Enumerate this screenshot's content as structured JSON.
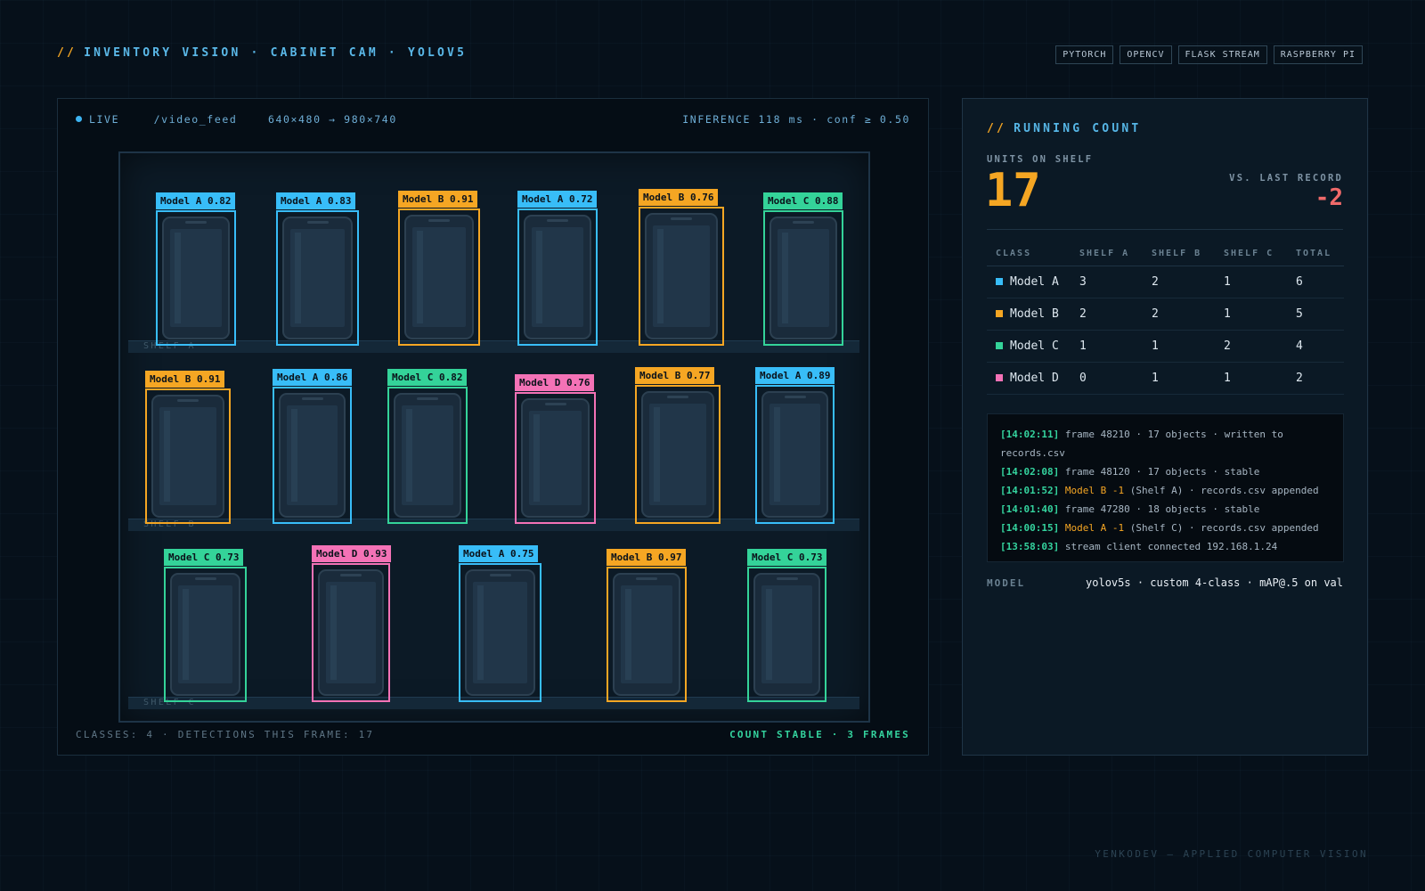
{
  "header": {
    "slashes": "//",
    "title": "INVENTORY VISION · CABINET CAM · YOLOV5",
    "tags": [
      "PYTORCH",
      "OPENCV",
      "FLASK STREAM",
      "RASPBERRY PI"
    ]
  },
  "feed": {
    "live_label": "LIVE",
    "route": "/video_feed",
    "resolution": "640×480 → 980×740",
    "inference": "INFERENCE 118 ms · conf ≥ 0.50",
    "bottom_left": "CLASSES: 4 · DETECTIONS THIS FRAME: 17",
    "bottom_right": "COUNT STABLE · 3 FRAMES",
    "shelves": [
      "SHELF A",
      "SHELF B",
      "SHELF C"
    ],
    "detections": [
      {
        "label": "Model A 0.82",
        "cls": "A"
      },
      {
        "label": "Model A 0.83",
        "cls": "A"
      },
      {
        "label": "Model B 0.91",
        "cls": "B"
      },
      {
        "label": "Model A 0.72",
        "cls": "A"
      },
      {
        "label": "Model B 0.76",
        "cls": "B"
      },
      {
        "label": "Model C 0.88",
        "cls": "C"
      },
      {
        "label": "Model B 0.91",
        "cls": "B"
      },
      {
        "label": "Model A 0.86",
        "cls": "A"
      },
      {
        "label": "Model C 0.82",
        "cls": "C"
      },
      {
        "label": "Model D 0.76",
        "cls": "D"
      },
      {
        "label": "Model B 0.77",
        "cls": "B"
      },
      {
        "label": "Model A 0.89",
        "cls": "A"
      },
      {
        "label": "Model C 0.73",
        "cls": "C"
      },
      {
        "label": "Model D 0.93",
        "cls": "D"
      },
      {
        "label": "Model A 0.75",
        "cls": "A"
      },
      {
        "label": "Model B 0.97",
        "cls": "B"
      },
      {
        "label": "Model C 0.73",
        "cls": "C"
      }
    ]
  },
  "colors": {
    "A": "#38bdf8",
    "B": "#f5a623",
    "C": "#34d399",
    "D": "#f472b6",
    "accent": "#f5a623",
    "negative": "#f06a6a"
  },
  "panel": {
    "slashes": "//",
    "title": "RUNNING COUNT",
    "units_label": "UNITS ON SHELF",
    "units_value": "17",
    "vs_label": "VS. LAST RECORD",
    "vs_value": "-2",
    "table": {
      "headers": [
        "CLASS",
        "SHELF A",
        "SHELF B",
        "SHELF C",
        "TOTAL"
      ],
      "rows": [
        {
          "cls": "A",
          "name": "Model A",
          "values": [
            "3",
            "2",
            "1",
            "6"
          ]
        },
        {
          "cls": "B",
          "name": "Model B",
          "values": [
            "2",
            "2",
            "1",
            "5"
          ]
        },
        {
          "cls": "C",
          "name": "Model C",
          "values": [
            "1",
            "1",
            "2",
            "4"
          ]
        },
        {
          "cls": "D",
          "name": "Model D",
          "values": [
            "0",
            "1",
            "1",
            "2"
          ]
        }
      ]
    },
    "log": [
      {
        "ts": "[14:02:11]",
        "hl": "",
        "text": " frame 48210 · 17 objects · written to records.csv"
      },
      {
        "ts": "[14:02:08]",
        "hl": "",
        "text": " frame 48120 · 17 objects · stable"
      },
      {
        "ts": "[14:01:52]",
        "hl": " Model B -1",
        "text": " (Shelf A) · records.csv appended"
      },
      {
        "ts": "[14:01:40]",
        "hl": "",
        "text": " frame 47280 · 18 objects · stable"
      },
      {
        "ts": "[14:00:15]",
        "hl": " Model A -1",
        "text": " (Shelf C) · records.csv appended"
      },
      {
        "ts": "[13:58:03]",
        "hl": "",
        "text": " stream client connected 192.168.1.24"
      }
    ],
    "model_label": "MODEL",
    "model_value": "yolov5s · custom 4-class · mAP@.5 on val"
  },
  "footer": "YENKODEV — APPLIED COMPUTER VISION"
}
